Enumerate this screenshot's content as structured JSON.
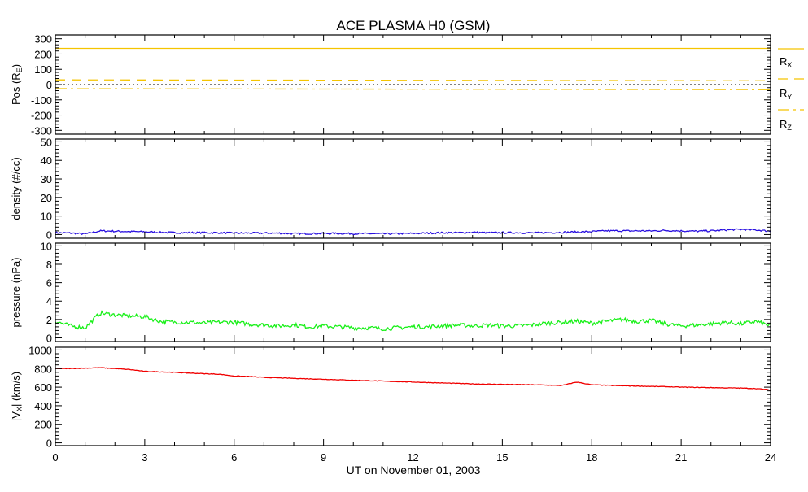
{
  "chart_data": [
    {
      "type": "line",
      "title": "ACE PLASMA H0 (GSM)",
      "ylabel": "Pos (R",
      "ylabel_sub": "E",
      "ylabel_end": ")",
      "ylim": [
        -325,
        325
      ],
      "yticks": [
        300,
        200,
        100,
        0,
        -100,
        -200,
        -300
      ],
      "x": [
        0,
        24
      ],
      "series": [
        {
          "name": "R",
          "sub": "X",
          "style": "solid",
          "color": "#f5c400",
          "values": [
            237,
            237
          ]
        },
        {
          "name": "R",
          "sub": "Y",
          "style": "dashed",
          "color": "#f5c400",
          "values": [
            31,
            25
          ]
        },
        {
          "name": "R",
          "sub": "Z",
          "style": "dashdot",
          "color": "#f5c400",
          "values": [
            -27,
            -33
          ]
        }
      ],
      "zero_line": true,
      "legend": "right"
    },
    {
      "type": "line",
      "ylabel": "density (#/cc)",
      "ylim": [
        -2,
        51.5
      ],
      "yticks": [
        50,
        40,
        30,
        20,
        10,
        0
      ],
      "x_step": 0.5,
      "series": [
        {
          "name": "density",
          "color": "#2a10e0",
          "values": [
            1,
            0.8,
            0.3,
            2,
            1.8,
            1.6,
            1.5,
            1.2,
            1,
            1,
            1,
            1,
            0.8,
            0.8,
            0.8,
            0.8,
            0.5,
            0.5,
            0.6,
            0.6,
            0.5,
            0.5,
            0.4,
            0.5,
            0.6,
            0.8,
            1,
            1,
            1.2,
            1,
            1,
            1,
            0.9,
            1,
            1.2,
            1.4,
            1.6,
            2,
            2,
            2,
            2,
            2.2,
            2,
            1.8,
            2,
            2.5,
            2.8,
            2.5,
            1.8
          ]
        }
      ]
    },
    {
      "type": "line",
      "ylabel": "pressure (nPa)",
      "ylim": [
        -0.4,
        10.3
      ],
      "yticks": [
        10,
        8,
        6,
        4,
        2,
        0
      ],
      "x_step": 0.5,
      "series": [
        {
          "name": "pressure",
          "color": "#19f019",
          "values": [
            1.8,
            1.3,
            1.1,
            2.7,
            2.5,
            2.4,
            2.3,
            1.8,
            1.7,
            1.7,
            1.6,
            1.7,
            1.7,
            1.5,
            1.4,
            1.3,
            1.4,
            1.2,
            1.3,
            1.2,
            1.1,
            1.1,
            1.0,
            1.1,
            1.2,
            1.2,
            1.3,
            1.4,
            1.3,
            1.4,
            1.3,
            1.3,
            1.4,
            1.6,
            1.7,
            1.8,
            1.6,
            1.8,
            2.0,
            1.8,
            1.9,
            1.5,
            1.3,
            1.4,
            1.5,
            1.7,
            1.5,
            1.8,
            1.3
          ]
        }
      ]
    },
    {
      "type": "line",
      "ylabel": "|V",
      "ylabel_sub": "X",
      "ylabel_end": "| (km/s)",
      "ylim": [
        -30,
        1030
      ],
      "yticks": [
        1000,
        800,
        600,
        400,
        200,
        0
      ],
      "x_step": 0.5,
      "series": [
        {
          "name": "Vx",
          "color": "#f00000",
          "values": [
            800,
            800,
            805,
            810,
            800,
            790,
            770,
            765,
            760,
            752,
            745,
            740,
            720,
            715,
            705,
            700,
            695,
            690,
            685,
            680,
            675,
            670,
            665,
            660,
            655,
            650,
            645,
            640,
            635,
            632,
            630,
            628,
            625,
            622,
            618,
            655,
            625,
            620,
            615,
            612,
            608,
            605,
            600,
            598,
            595,
            592,
            590,
            585,
            570
          ]
        }
      ],
      "xlabel": "UT on November 01, 2003",
      "xlim": [
        0,
        24
      ],
      "xticks": [
        "0",
        "3",
        "6",
        "9",
        "12",
        "15",
        "18",
        "21",
        "24"
      ]
    }
  ]
}
